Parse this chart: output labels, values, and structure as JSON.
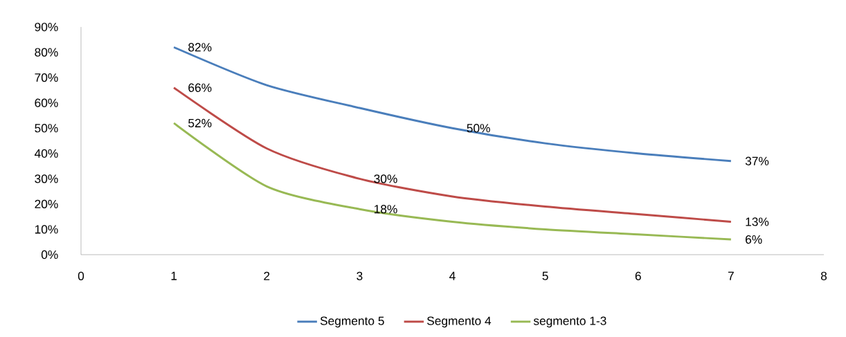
{
  "chart_data": {
    "type": "line",
    "x": [
      1,
      2,
      3,
      4,
      5,
      6,
      7
    ],
    "series": [
      {
        "name": "Segmento 5",
        "color": "#4a7ebb",
        "values": [
          82,
          67,
          58,
          50,
          44,
          40,
          37
        ],
        "value_labels": [
          "82%",
          null,
          null,
          "50%",
          null,
          null,
          "37%"
        ]
      },
      {
        "name": "Segmento 4",
        "color": "#be4b48",
        "values": [
          66,
          42,
          30,
          23,
          19,
          16,
          13
        ],
        "value_labels": [
          "66%",
          null,
          "30%",
          null,
          null,
          null,
          "13%"
        ]
      },
      {
        "name": "segmento 1-3",
        "color": "#98b954",
        "values": [
          52,
          27,
          18,
          13,
          10,
          8,
          6
        ],
        "value_labels": [
          "52%",
          null,
          "18%",
          null,
          null,
          null,
          "6%"
        ]
      }
    ],
    "xlim": [
      0,
      8
    ],
    "xticks": [
      0,
      1,
      2,
      3,
      4,
      5,
      6,
      7,
      8
    ],
    "ylim": [
      0,
      90
    ],
    "yticks": [
      {
        "value": 0,
        "label": "0%"
      },
      {
        "value": 10,
        "label": "10%"
      },
      {
        "value": 20,
        "label": "20%"
      },
      {
        "value": 30,
        "label": "30%"
      },
      {
        "value": 40,
        "label": "40%"
      },
      {
        "value": 50,
        "label": "50%"
      },
      {
        "value": 60,
        "label": "60%"
      },
      {
        "value": 70,
        "label": "70%"
      },
      {
        "value": 80,
        "label": "80%"
      },
      {
        "value": 90,
        "label": "90%"
      }
    ],
    "grid": false,
    "legend": "bottom",
    "marker": "none",
    "line_style": "solid"
  }
}
